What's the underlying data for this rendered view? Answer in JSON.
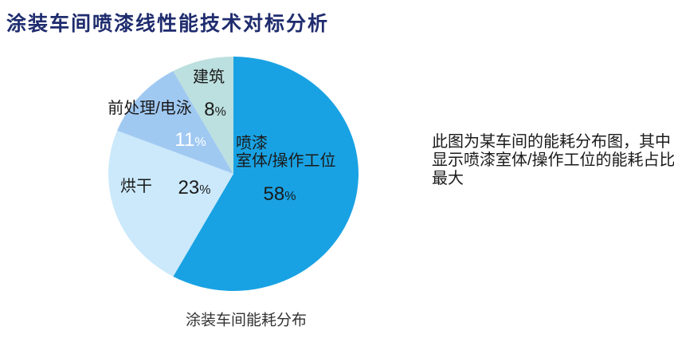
{
  "header": {
    "title": "涂装车间喷漆线性能技术对标分析",
    "color": "#1F2C6E"
  },
  "chart_data": {
    "type": "pie",
    "title": "涂装车间能耗分布",
    "direction": "clockwise",
    "start_angle_deg": 0,
    "legend_position": "none",
    "percent_sign": "%",
    "slices": [
      {
        "label": "喷漆室体/操作工位",
        "label_lines": [
          "喷漆",
          "室体/操作工位"
        ],
        "value": 58,
        "pct_label": "58%",
        "color": "#19A2E3",
        "pct_color": "#1a1a1a"
      },
      {
        "label": "烘干",
        "label_lines": [
          "烘干"
        ],
        "value": 23,
        "pct_label": "23%",
        "color": "#CBE9FB",
        "pct_color": "#1a1a1a"
      },
      {
        "label": "前处理/电泳",
        "label_lines": [
          "前处理/电泳"
        ],
        "value": 11,
        "pct_label": "11%",
        "color": "#A0C9F2",
        "pct_color": "#ffffff"
      },
      {
        "label": "建筑",
        "label_lines": [
          "建筑"
        ],
        "value": 8,
        "pct_label": "8%",
        "color": "#BCE0DF",
        "pct_color": "#1a1a1a"
      }
    ]
  },
  "annotation": {
    "lines": [
      "此图为某车间的能耗分布图，其中",
      "显示喷漆室体/操作工位的能耗占比",
      "最大"
    ]
  }
}
